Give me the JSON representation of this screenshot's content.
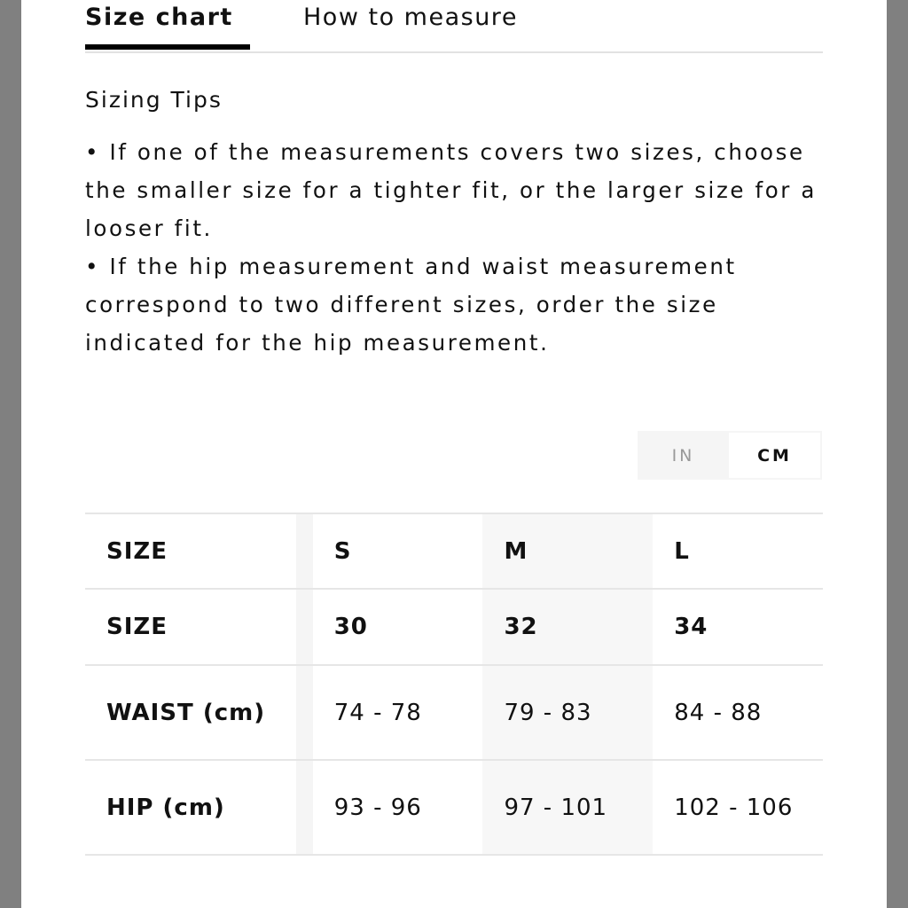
{
  "tabs": [
    {
      "label": "Size chart",
      "active": true
    },
    {
      "label": "How to measure",
      "active": false
    }
  ],
  "tips": {
    "title": "Sizing Tips",
    "items": [
      "• If one of the measurements covers two sizes, choose the smaller size for a tighter fit, or the larger size for a looser fit.",
      "• If the hip measurement and waist measurement correspond to two different sizes, order the size indicated for the hip measurement."
    ]
  },
  "units": {
    "options": [
      "IN",
      "CM"
    ],
    "selected": "CM"
  },
  "table": {
    "rows": [
      {
        "label": "SIZE",
        "values": [
          "S",
          "M",
          "L"
        ]
      },
      {
        "label": "SIZE",
        "values": [
          "30",
          "32",
          "34"
        ]
      },
      {
        "label": "WAIST (cm)",
        "values": [
          "74 - 78",
          "79 - 83",
          "84 - 88"
        ]
      },
      {
        "label": "HIP (cm)",
        "values": [
          "93 - 96",
          "97 - 101",
          "102 - 106"
        ]
      }
    ]
  }
}
